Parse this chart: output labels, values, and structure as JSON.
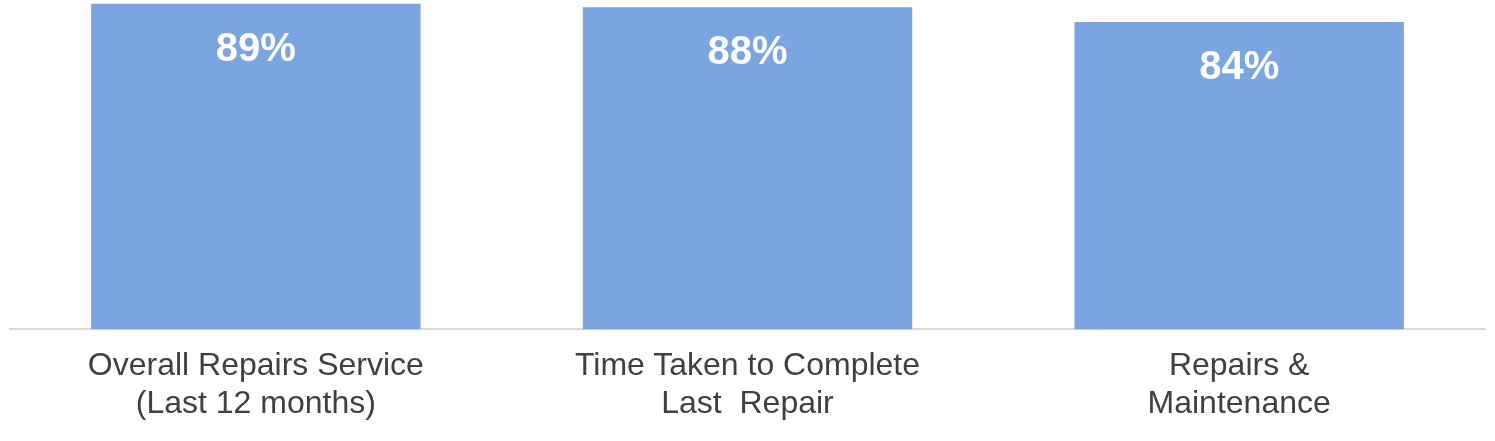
{
  "chart_data": {
    "type": "bar",
    "categories": [
      "Overall Repairs Service\n(Last 12 months)",
      "Time Taken to Complete\nLast  Repair",
      "Repairs &\nMaintenance"
    ],
    "values": [
      89,
      88,
      84
    ],
    "value_labels": [
      "89%",
      "88%",
      "84%"
    ],
    "color": "#7aa5e1",
    "grid": false,
    "legend": false
  }
}
